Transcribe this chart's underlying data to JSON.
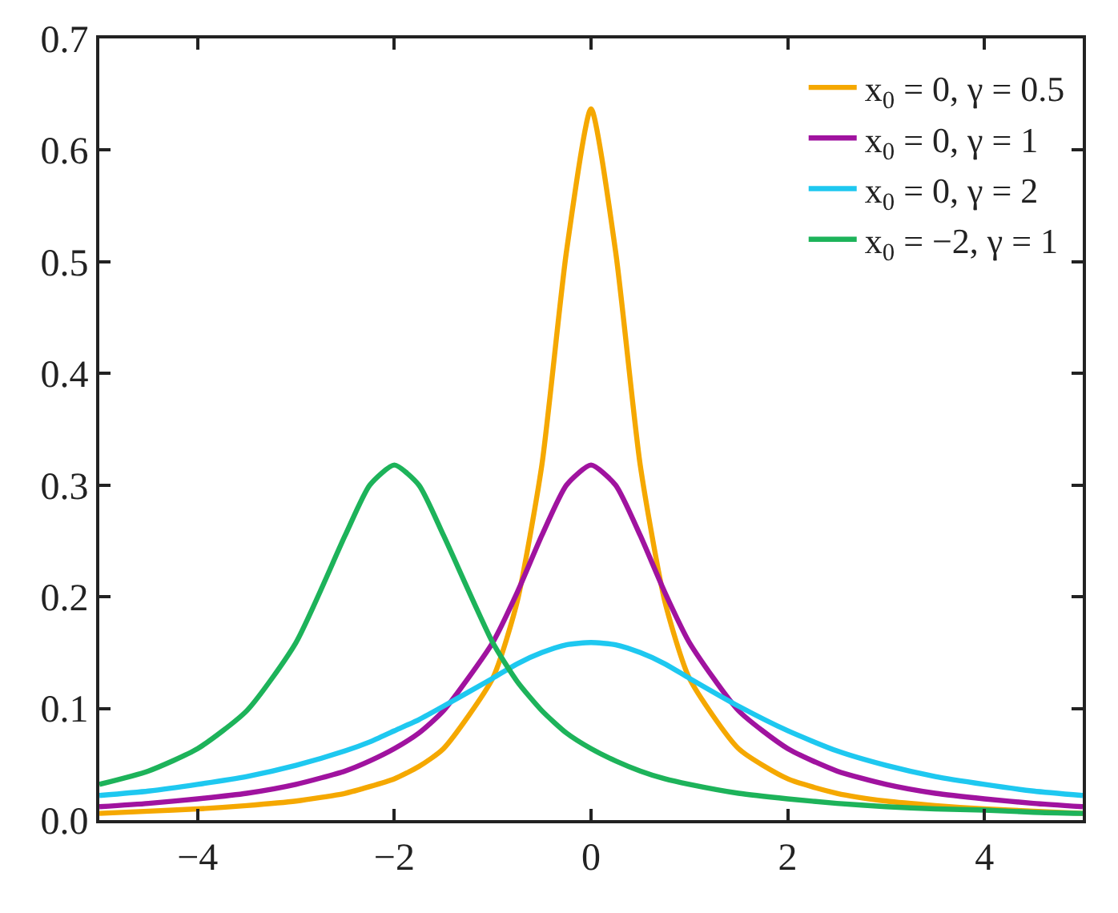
{
  "chart_data": {
    "type": "line",
    "x": [
      -5,
      -4.5,
      -4,
      -3.5,
      -3,
      -2.5,
      -2.25,
      -2,
      -1.75,
      -1.5,
      -1,
      -0.75,
      -0.5,
      -0.25,
      0,
      0.25,
      0.5,
      0.75,
      1,
      1.5,
      2,
      2.5,
      3,
      3.5,
      4,
      4.5,
      5
    ],
    "series": [
      {
        "name": "x$_{0}$ = 0, γ = 0.5",
        "color": "#f5a800",
        "values": [
          0.006,
          0.008,
          0.01,
          0.013,
          0.017,
          0.024,
          0.03,
          0.037,
          0.048,
          0.064,
          0.127,
          0.196,
          0.318,
          0.509,
          0.637,
          0.509,
          0.318,
          0.196,
          0.127,
          0.064,
          0.037,
          0.024,
          0.017,
          0.013,
          0.01,
          0.008,
          0.006
        ]
      },
      {
        "name": "x$_{0}$ = 0, γ = 1",
        "color": "#a0139f",
        "values": [
          0.012,
          0.015,
          0.019,
          0.024,
          0.032,
          0.044,
          0.053,
          0.064,
          0.078,
          0.098,
          0.159,
          0.204,
          0.255,
          0.3,
          0.318,
          0.3,
          0.255,
          0.204,
          0.159,
          0.098,
          0.064,
          0.044,
          0.032,
          0.024,
          0.019,
          0.015,
          0.012
        ]
      },
      {
        "name": "x$_{0}$ = 0, γ = 2",
        "color": "#1ec8f0",
        "values": [
          0.022,
          0.026,
          0.032,
          0.039,
          0.049,
          0.062,
          0.07,
          0.08,
          0.09,
          0.102,
          0.127,
          0.14,
          0.15,
          0.157,
          0.159,
          0.157,
          0.15,
          0.14,
          0.127,
          0.102,
          0.08,
          0.062,
          0.049,
          0.039,
          0.032,
          0.026,
          0.022
        ]
      },
      {
        "name": "x$_{0}$ = −2, γ = 1",
        "color": "#1db35a",
        "values": [
          0.032,
          0.044,
          0.064,
          0.098,
          0.159,
          0.255,
          0.3,
          0.318,
          0.3,
          0.255,
          0.159,
          0.124,
          0.098,
          0.078,
          0.064,
          0.053,
          0.044,
          0.037,
          0.032,
          0.024,
          0.019,
          0.015,
          0.012,
          0.01,
          0.009,
          0.007,
          0.006
        ]
      }
    ],
    "xlim": [
      -5,
      5
    ],
    "xticks": [
      {
        "value": -4,
        "label": "−4"
      },
      {
        "value": -2,
        "label": "−2"
      },
      0,
      2,
      4
    ],
    "ylim": [
      0,
      0.7
    ],
    "yticks": [
      {
        "value": 0,
        "label": "0.0"
      },
      0.1,
      0.2,
      0.3,
      0.4,
      0.5,
      0.6,
      0.7
    ],
    "legend": "top right",
    "marker": "none",
    "line_style": "solid"
  }
}
